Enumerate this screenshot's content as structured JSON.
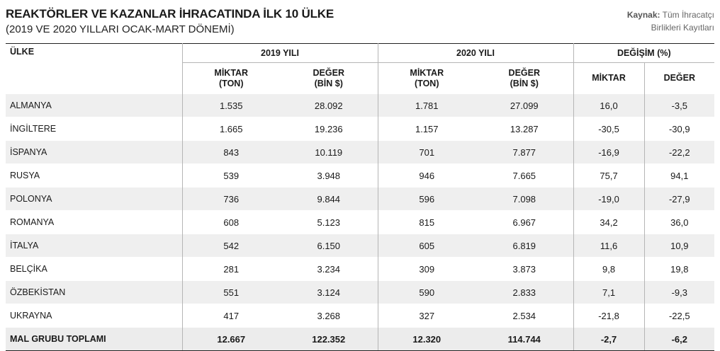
{
  "header": {
    "title": "REAKTÖRLER VE KAZANLAR İHRACATINDA İLK 10 ÜLKE",
    "subtitle": "(2019 VE 2020 YILLARI OCAK-MART DÖNEMİ)",
    "source_label": "Kaynak:",
    "source_line1": " Tüm İhracatçı",
    "source_line2": "Birlikleri Kayıtları"
  },
  "table": {
    "col_country": "ÜLKE",
    "group_2019": "2019 YILI",
    "group_2020": "2020 YILI",
    "group_change": "DEĞİŞİM (%)",
    "sub_miktar_ton_1": "MİKTAR",
    "sub_miktar_ton_2": "(TON)",
    "sub_deger_1": "DEĞER",
    "sub_deger_2": "(BİN $)",
    "sub_miktar": "MİKTAR",
    "sub_deger": "DEĞER",
    "rows": [
      [
        "ALMANYA",
        "1.535",
        "28.092",
        "1.781",
        "27.099",
        "16,0",
        "-3,5"
      ],
      [
        "İNGİLTERE",
        "1.665",
        "19.236",
        "1.157",
        "13.287",
        "-30,5",
        "-30,9"
      ],
      [
        "İSPANYA",
        "843",
        "10.119",
        "701",
        "7.877",
        "-16,9",
        "-22,2"
      ],
      [
        "RUSYA",
        "539",
        "3.948",
        "946",
        "7.665",
        "75,7",
        "94,1"
      ],
      [
        "POLONYA",
        "736",
        "9.844",
        "596",
        "7.098",
        "-19,0",
        "-27,9"
      ],
      [
        "ROMANYA",
        "608",
        "5.123",
        "815",
        "6.967",
        "34,2",
        "36,0"
      ],
      [
        "İTALYA",
        "542",
        "6.150",
        "605",
        "6.819",
        "11,6",
        "10,9"
      ],
      [
        "BELÇİKA",
        "281",
        "3.234",
        "309",
        "3.873",
        "9,8",
        "19,8"
      ],
      [
        "ÖZBEKİSTAN",
        "551",
        "3.124",
        "590",
        "2.833",
        "7,1",
        "-9,3"
      ],
      [
        "UKRAYNA",
        "417",
        "3.268",
        "327",
        "2.534",
        "-21,8",
        "-22,5"
      ]
    ],
    "total": [
      "MAL GRUBU TOPLAMI",
      "12.667",
      "122.352",
      "12.320",
      "114.744",
      "-2,7",
      "-6,2"
    ]
  }
}
